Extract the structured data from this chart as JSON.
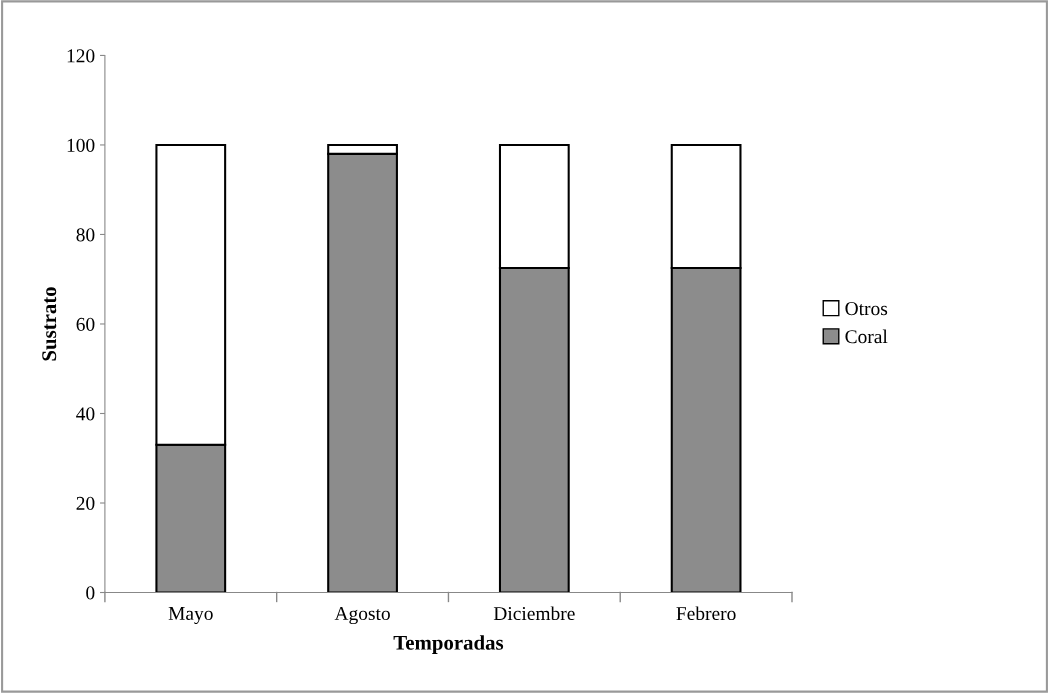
{
  "chart_data": {
    "type": "bar",
    "stacked": true,
    "xlabel": "Temporadas",
    "ylabel": "Sustrato",
    "categories": [
      "Mayo",
      "Agosto",
      "Diciembre",
      "Febrero"
    ],
    "series": [
      {
        "name": "Coral",
        "color": "#8c8c8c",
        "values": [
          33,
          98,
          72.5,
          72.5
        ]
      },
      {
        "name": "Otros",
        "color": "#ffffff",
        "values": [
          67,
          2,
          27.5,
          27.5
        ]
      }
    ],
    "ylim": [
      0,
      120
    ],
    "yticks": [
      0,
      20,
      40,
      60,
      80,
      100,
      120
    ],
    "grid": false,
    "legend": "right"
  }
}
